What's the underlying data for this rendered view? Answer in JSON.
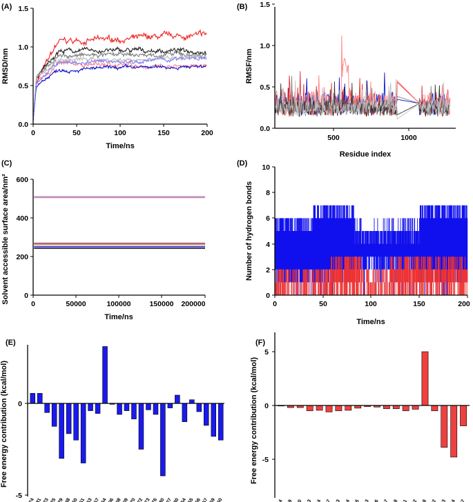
{
  "panels": {
    "A": {
      "label": "(A)",
      "xlabel": "Time/ns",
      "ylabel": "RMSD/nm",
      "chart_data": {
        "type": "line",
        "xlim": [
          0,
          200
        ],
        "ylim": [
          0,
          1.5
        ],
        "xticks": [
          "0",
          "50",
          "100",
          "150",
          "200"
        ],
        "yticks": [
          "0.0",
          "0.5",
          "1.0",
          "1.5"
        ],
        "series": [
          {
            "name": "red",
            "color": "#ee2222",
            "start": 0.55,
            "plateau": 1.05,
            "end": 1.15,
            "noise": 0.05
          },
          {
            "name": "salmon",
            "color": "#ff8080",
            "start": 0.55,
            "plateau": 0.78,
            "end": 0.75,
            "noise": 0.035
          },
          {
            "name": "black",
            "color": "#222222",
            "start": 0.6,
            "plateau": 0.95,
            "end": 0.95,
            "noise": 0.04
          },
          {
            "name": "gray",
            "color": "#808080",
            "start": 0.6,
            "plateau": 0.88,
            "end": 0.9,
            "noise": 0.04
          },
          {
            "name": "light-gray",
            "color": "#b8b8b8",
            "start": 0.6,
            "plateau": 0.83,
            "end": 0.85,
            "noise": 0.035
          },
          {
            "name": "blue",
            "color": "#1010cc",
            "start": 0.5,
            "plateau": 0.7,
            "end": 0.75,
            "noise": 0.03
          },
          {
            "name": "light-blue",
            "color": "#8080ee",
            "start": 0.55,
            "plateau": 0.78,
            "end": 0.85,
            "noise": 0.035
          }
        ]
      }
    },
    "B": {
      "label": "(B)",
      "xlabel": "Residue index",
      "ylabel": "RMSF/nm",
      "chart_data": {
        "type": "line",
        "xlim": [
          150,
          1350
        ],
        "ylim": [
          0,
          1.5
        ],
        "xticks": [
          "500",
          "1000"
        ],
        "yticks": [
          "0.0",
          "0.5",
          "1.0",
          "1.5"
        ],
        "series": [
          {
            "name": "blue",
            "color": "#1010cc",
            "amp": 0.28,
            "base": 0.16
          },
          {
            "name": "red",
            "color": "#e03030",
            "amp": 0.25,
            "base": 0.15
          },
          {
            "name": "salmon",
            "color": "#ff8080",
            "amp": 0.3,
            "base": 0.15
          },
          {
            "name": "gray",
            "color": "#808080",
            "amp": 0.22,
            "base": 0.15
          },
          {
            "name": "black",
            "color": "#333333",
            "amp": 0.2,
            "base": 0.14
          },
          {
            "name": "light-gray",
            "color": "#c0c0c0",
            "amp": 0.2,
            "base": 0.15
          }
        ]
      }
    },
    "C": {
      "label": "(C)",
      "xlabel": "Time/ns",
      "ylabel": "Solvent accessible surface area/nm²",
      "chart_data": {
        "type": "line",
        "xlim": [
          0,
          200000
        ],
        "ylim": [
          0,
          600
        ],
        "xticks": [
          "0",
          "50000",
          "100000",
          "150000",
          "200000"
        ],
        "yticks": [
          "0",
          "200",
          "400",
          "600"
        ],
        "series": [
          {
            "name": "light-blue",
            "color": "#9090ee",
            "value": 510
          },
          {
            "name": "salmon",
            "color": "#f08080",
            "value": 505
          },
          {
            "name": "gray",
            "color": "#909090",
            "value": 270
          },
          {
            "name": "red",
            "color": "#e03030",
            "value": 265
          },
          {
            "name": "light-gray",
            "color": "#c8c8c8",
            "value": 258
          },
          {
            "name": "blue",
            "color": "#1010cc",
            "value": 250
          },
          {
            "name": "black",
            "color": "#222222",
            "value": 242
          }
        ]
      }
    },
    "D": {
      "label": "(D)",
      "xlabel": "Time/ns",
      "ylabel": "Number of hydrogen bonds",
      "chart_data": {
        "type": "line",
        "xlim": [
          0,
          200
        ],
        "ylim": [
          0,
          10
        ],
        "xticks": [
          "0",
          "50",
          "100",
          "150",
          "200"
        ],
        "yticks": [
          "0",
          "2",
          "4",
          "6",
          "8",
          "10"
        ],
        "series": [
          {
            "name": "blue",
            "color": "#1010ee",
            "min": 0,
            "max": 7
          },
          {
            "name": "red",
            "color": "#ee3333",
            "min": 0,
            "max": 3
          }
        ]
      }
    },
    "E": {
      "label": "(E)",
      "ylabel": "Free energy contribution (kcal/mol)",
      "chart_data": {
        "type": "bar",
        "ylim": [
          -5,
          3.5
        ],
        "yticks": [
          "0",
          "-5"
        ],
        "bar_color": "#1a1aee",
        "categories": [
          "GLU174",
          "GLU181",
          "GLN223",
          "ALA225",
          "LEU229",
          "ARG348",
          "PRO350",
          "VAL351",
          "LEU353",
          "GLU357",
          "LEU364",
          "MET406",
          "PHE408",
          "ILE409",
          "THR570",
          "ILE572",
          "PHE573",
          "ARG576",
          "LEU580",
          "GLU627",
          "TYR630",
          "ASN654",
          "LEU655",
          "SER656",
          "THR657",
          "MET659",
          "ASP660"
        ],
        "values": [
          0.55,
          0.55,
          -0.5,
          -1.25,
          -3.0,
          -1.65,
          -2.0,
          -3.25,
          -0.4,
          -0.55,
          3.1,
          -0.05,
          -0.6,
          -0.4,
          -0.85,
          -2.5,
          -0.35,
          -0.6,
          -3.95,
          -0.25,
          0.45,
          -1.0,
          0.2,
          -0.45,
          -1.2,
          -1.8,
          -2.0
        ]
      }
    },
    "F": {
      "label": "(F)",
      "ylabel": "Free energy contribution (kcal/mol)",
      "chart_data": {
        "type": "bar",
        "ylim": [
          -6,
          6
        ],
        "yticks": [
          "5",
          "0",
          "-5"
        ],
        "bar_color": "#ee4040",
        "categories": [
          "SER1004",
          "VAL1029",
          "SER120",
          "ILE123",
          "LYS124",
          "LYS127",
          "LYS163",
          "PRO164",
          "ALA165",
          "ALA193",
          "LEU196",
          "VAL197",
          "GLY198",
          "TYR201",
          "TYR202",
          "GLU208",
          "LEU232",
          "GLN233",
          "SER234",
          "TYR237"
        ],
        "values": [
          -0.05,
          -0.2,
          -0.2,
          -0.5,
          -0.45,
          -0.6,
          -0.5,
          -0.45,
          -0.25,
          -0.1,
          -0.15,
          -0.3,
          -0.3,
          -0.5,
          -0.35,
          5.0,
          -0.5,
          -3.9,
          -4.8,
          -1.9
        ]
      }
    }
  }
}
